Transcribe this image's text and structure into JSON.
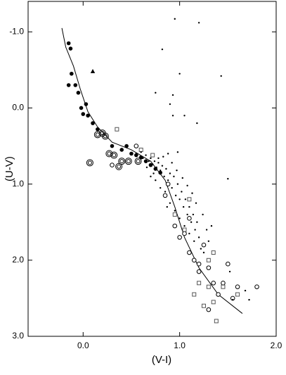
{
  "chart_data": {
    "type": "scatter",
    "xlabel": "(V-I)",
    "ylabel": "(U-V)",
    "xlim": [
      -0.57,
      2.0
    ],
    "ylim": [
      -1.4,
      3.0
    ],
    "y_inverted": true,
    "xticks": [
      {
        "value": 0,
        "label": "0.0"
      },
      {
        "value": 1,
        "label": "1.0"
      },
      {
        "value": 2,
        "label": "2.0"
      }
    ],
    "yticks": [
      {
        "value": -1,
        "label": "-1.0"
      },
      {
        "value": 0,
        "label": "0.0"
      },
      {
        "value": 1,
        "label": "1.0"
      },
      {
        "value": 2,
        "label": "2.0"
      },
      {
        "value": 3,
        "label": "3.0"
      }
    ],
    "series": [
      {
        "marker": "line",
        "color": "#000000",
        "x": [
          -0.22,
          -0.18,
          -0.1,
          -0.03,
          0.05,
          0.15,
          0.3,
          0.5,
          0.7,
          0.85,
          0.95,
          1.05,
          1.2,
          1.4,
          1.65
        ],
        "y": [
          -1.05,
          -0.8,
          -0.55,
          -0.25,
          0.05,
          0.25,
          0.45,
          0.55,
          0.7,
          0.95,
          1.3,
          1.7,
          2.1,
          2.45,
          2.7
        ]
      },
      {
        "marker": "filled-circle",
        "color": "#000000",
        "x": [
          -0.15,
          -0.13,
          -0.12,
          -0.08,
          -0.15,
          -0.05,
          -0.02,
          0.0,
          0.03,
          0.05,
          0.1,
          0.15,
          0.3,
          0.4,
          0.5,
          0.6,
          0.65,
          0.7,
          0.75,
          0.8,
          0.45,
          0.55
        ],
        "y": [
          -0.85,
          -0.78,
          -0.45,
          -0.3,
          -0.3,
          -0.2,
          0.0,
          0.08,
          -0.05,
          0.1,
          0.2,
          0.28,
          0.5,
          0.55,
          0.6,
          0.65,
          0.7,
          0.75,
          0.8,
          0.85,
          0.5,
          0.62
        ]
      },
      {
        "marker": "open-circle",
        "color": "#000000",
        "x": [
          0.88,
          0.95,
          1.0,
          1.05,
          1.1,
          1.15,
          1.2,
          1.3,
          1.35,
          1.4,
          1.55,
          1.6,
          1.5,
          1.45,
          1.25,
          1.1,
          0.3,
          0.85,
          1.8,
          1.3,
          1.2,
          0.55
        ],
        "y": [
          1.0,
          1.55,
          1.7,
          1.65,
          1.9,
          2.0,
          2.15,
          2.1,
          2.3,
          2.45,
          2.5,
          2.35,
          2.05,
          2.3,
          1.8,
          1.45,
          0.75,
          1.15,
          2.35,
          2.65,
          2.05,
          0.5
        ]
      },
      {
        "marker": "bullseye",
        "color": "#000000",
        "x": [
          0.15,
          0.2,
          0.23,
          0.27,
          0.32,
          0.07,
          0.4,
          0.37,
          0.47,
          0.57
        ],
        "y": [
          0.35,
          0.33,
          0.37,
          0.6,
          0.62,
          0.72,
          0.7,
          0.77,
          0.7,
          0.7
        ]
      },
      {
        "marker": "open-square",
        "color": "#555555",
        "x": [
          0.35,
          0.6,
          1.3,
          1.35,
          1.25,
          1.38,
          1.15,
          1.6,
          1.45,
          1.3,
          1.2,
          1.05,
          0.95,
          1.35,
          0.72,
          1.1
        ],
        "y": [
          0.28,
          0.55,
          2.35,
          2.55,
          2.6,
          2.8,
          2.45,
          2.45,
          2.35,
          2.0,
          2.3,
          1.6,
          1.4,
          1.9,
          0.62,
          1.2
        ]
      },
      {
        "marker": "dot",
        "color": "#000000",
        "x": [
          1.2,
          0.95,
          0.82,
          1.43,
          0.75,
          1.0,
          0.93,
          1.05,
          0.93,
          1.18,
          0.9,
          1.5,
          1.52,
          0.55,
          0.6,
          0.62,
          0.65,
          0.68,
          0.7,
          0.72,
          0.74,
          0.76,
          0.78,
          0.8,
          0.82,
          0.84,
          0.86,
          0.88,
          0.9,
          0.92,
          0.94,
          0.96,
          0.98,
          1.0,
          1.02,
          1.04,
          1.06,
          1.08,
          1.1,
          1.12,
          1.14,
          1.16,
          1.18,
          1.2,
          0.7,
          0.75,
          0.8,
          0.85,
          0.9,
          0.95,
          1.0,
          1.05,
          1.1,
          1.15,
          1.22,
          1.25,
          1.28,
          1.3,
          0.88,
          0.92,
          0.97,
          1.03,
          0.83,
          0.78,
          1.08,
          1.13,
          1.17,
          1.24,
          1.33,
          0.66,
          0.73,
          0.87,
          1.55,
          1.68,
          1.72,
          0.98
        ],
        "y": [
          -1.12,
          -1.17,
          -0.77,
          -0.42,
          -0.2,
          -0.45,
          -0.17,
          0.1,
          0.1,
          0.2,
          -0.05,
          0.93,
          2.15,
          0.6,
          0.58,
          0.66,
          0.62,
          0.7,
          0.66,
          0.74,
          0.7,
          0.78,
          0.72,
          0.82,
          0.76,
          0.9,
          0.8,
          0.95,
          0.86,
          1.05,
          0.9,
          1.15,
          1.0,
          1.2,
          1.1,
          1.3,
          1.2,
          1.4,
          1.3,
          1.5,
          1.4,
          1.6,
          1.5,
          1.7,
          0.9,
          0.95,
          1.05,
          1.1,
          1.25,
          1.35,
          1.45,
          1.55,
          1.65,
          1.75,
          1.85,
          1.9,
          1.6,
          1.75,
          0.6,
          0.72,
          0.82,
          0.92,
          0.64,
          0.66,
          1.02,
          1.12,
          1.25,
          1.4,
          1.55,
          0.78,
          0.86,
          1.3,
          2.52,
          2.4,
          2.52,
          0.58
        ]
      },
      {
        "marker": "triangle",
        "color": "#000000",
        "x": [
          0.1
        ],
        "y": [
          -0.48
        ]
      }
    ]
  }
}
